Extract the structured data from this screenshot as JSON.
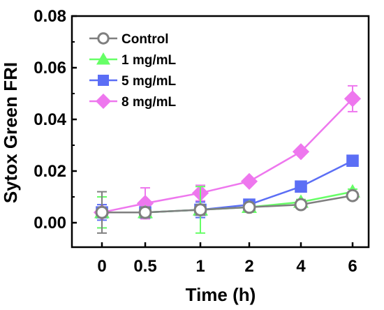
{
  "chart_data": {
    "type": "line",
    "xlabel": "Time (h)",
    "ylabel": "Sytox Green FRI",
    "categories": [
      "0",
      "0.5",
      "1",
      "2",
      "4",
      "6"
    ],
    "ylim": [
      -0.01,
      0.08
    ],
    "yticks": [
      "0.00",
      "0.02",
      "0.04",
      "0.06",
      "0.08"
    ],
    "ytick_values": [
      0.0,
      0.02,
      0.04,
      0.06,
      0.08
    ],
    "legend_position": "top-left",
    "grid": false,
    "series": [
      {
        "name": "Control",
        "color": "#7f7f7f",
        "marker": "open-circle",
        "values": [
          0.004,
          0.004,
          0.005,
          0.006,
          0.007,
          0.0105
        ],
        "errors": [
          0.008,
          0.002,
          0.002,
          0.001,
          0.001,
          0.001
        ]
      },
      {
        "name": "1 mg/mL",
        "color": "#66ff66",
        "marker": "triangle",
        "values": [
          0.004,
          0.004,
          0.005,
          0.006,
          0.008,
          0.012
        ],
        "errors": [
          0.006,
          0.002,
          0.009,
          0.001,
          0.001,
          0.001
        ]
      },
      {
        "name": "5 mg/mL",
        "color": "#5b6ef5",
        "marker": "square",
        "values": [
          0.004,
          0.004,
          0.005,
          0.007,
          0.014,
          0.024
        ],
        "errors": [
          0.003,
          0.002,
          0.003,
          0.001,
          0.001,
          0.001
        ]
      },
      {
        "name": "8 mg/mL",
        "color": "#ee77ee",
        "marker": "diamond",
        "values": [
          0.004,
          0.0075,
          0.0115,
          0.016,
          0.0275,
          0.048
        ],
        "errors": [
          0.006,
          0.006,
          0.003,
          0.001,
          0.001,
          0.005
        ]
      }
    ]
  }
}
